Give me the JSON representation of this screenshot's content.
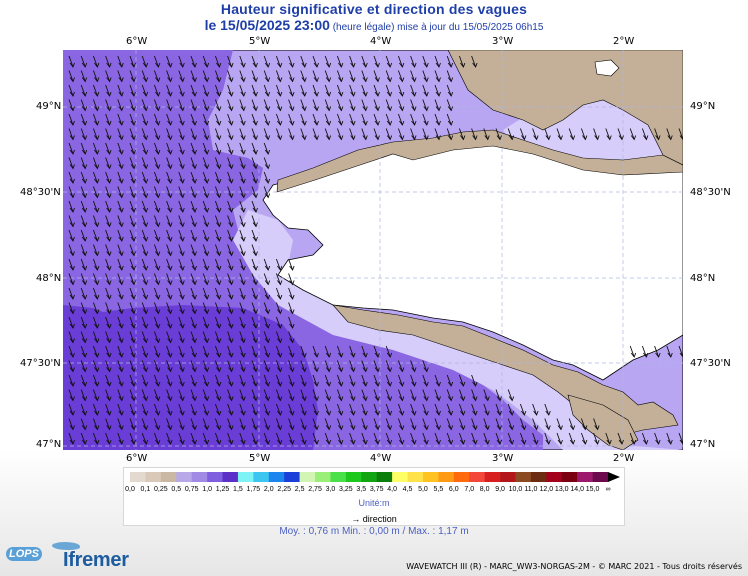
{
  "title": {
    "line1": "Hauteur significative et direction des vagues",
    "date": "le 15/05/2025 23:00",
    "subtitle": " (heure légale) mise à jour du 15/05/2025 06h15"
  },
  "axes": {
    "top_ticks": [
      "6°W",
      "5°W",
      "4°W",
      "3°W",
      "2°W"
    ],
    "bottom_ticks": [
      "6°W",
      "5°W",
      "4°W",
      "3°W",
      "2°W"
    ],
    "left_ticks": [
      "49°N",
      "48°30'N",
      "48°N",
      "47°30'N",
      "47°N"
    ],
    "right_ticks": [
      "49°N",
      "48°30'N",
      "48°N",
      "47°30'N",
      "47°N"
    ]
  },
  "map": {
    "region": "Bretagne",
    "colors": {
      "land": "#c4b098",
      "white_land": "#ffffff",
      "wave_0_50": "#d7cdfa",
      "wave_0_75": "#b9a6f3",
      "wave_1_0": "#8a66e3",
      "wave_1_25": "#6a3dd6",
      "grid": "#aeb6e5"
    }
  },
  "legend": {
    "labels": [
      "0,0",
      "0,1",
      "0,25",
      "0,5",
      "0,75",
      "1,0",
      "1,25",
      "1,5",
      "1,75",
      "2,0",
      "2,25",
      "2,5",
      "2,75",
      "3,0",
      "3,25",
      "3,5",
      "3,75",
      "4,0",
      "4,5",
      "5,0",
      "5,5",
      "6,0",
      "7,0",
      "8,0",
      "9,0",
      "10,0",
      "11,0",
      "12,0",
      "13,0",
      "14,0",
      "15,0",
      "∞"
    ],
    "colors": [
      "#e4d9cf",
      "#d8c9b8",
      "#cbb8a2",
      "#b8a8e8",
      "#a08ae6",
      "#7f5fdf",
      "#5d2fc9",
      "#7ef3f5",
      "#3bc6f1",
      "#1c86ee",
      "#1b3fd8",
      "#d2f5b4",
      "#9aef78",
      "#49e049",
      "#1dc81d",
      "#11a511",
      "#0b7d0b",
      "#ffff66",
      "#ffe24a",
      "#ffc220",
      "#ff9a14",
      "#ff6a0f",
      "#f2473a",
      "#d81f1f",
      "#b3161a",
      "#8c4a23",
      "#6c2c12",
      "#a3001c",
      "#7a0011",
      "#9b1a6e",
      "#6b0a4d"
    ],
    "unit": "Unité:m",
    "direction_label": "direction"
  },
  "stats": "Moy. : 0,76 m    Min. : 0,00 m / Max. : 1,17 m",
  "credit": "WAVEWATCH III (R) - MARC_WW3-NORGAS-2M - © MARC 2021 - Tous droits réservés",
  "logos": {
    "lops": "LOPS",
    "ifremer": "Ifremer"
  }
}
